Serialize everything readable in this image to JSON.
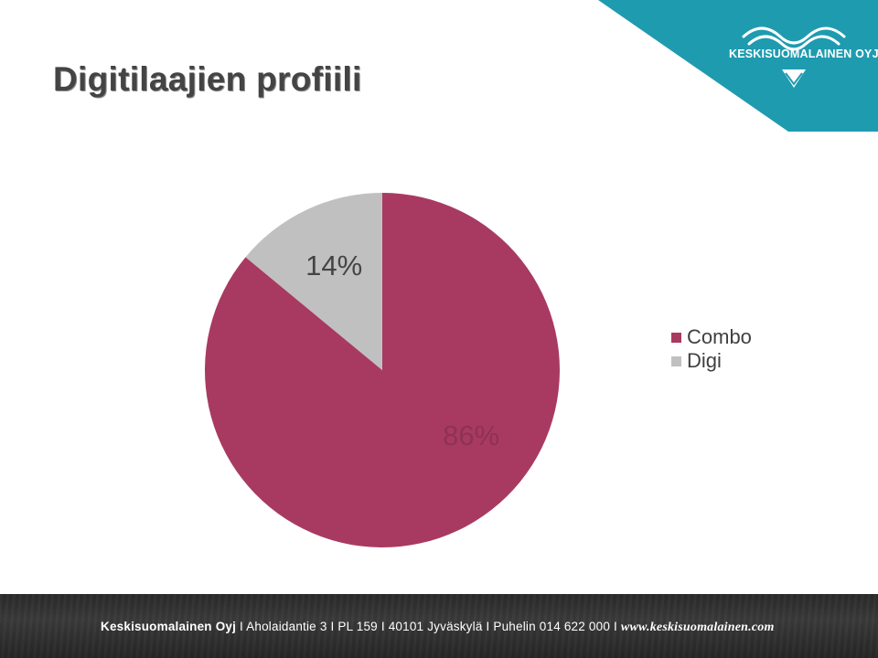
{
  "page": {
    "title": "Digitilaajien profiili"
  },
  "brand": {
    "logo_text": "KESKISUOMALAINEN OYJ",
    "corner_color": "#1f9bb0",
    "logo_icon": "wave-crest-logo-icon"
  },
  "chart_data": {
    "type": "pie",
    "title": "",
    "categories": [
      "Combo",
      "Digi"
    ],
    "values": [
      86,
      14
    ],
    "data_labels": [
      "86%",
      "14%"
    ],
    "colors": [
      "#a83a62",
      "#c0c0c0"
    ],
    "start_angle": "top (12 o'clock), clockwise",
    "legend_position": "right"
  },
  "legend": {
    "items": [
      {
        "label": "Combo",
        "color": "#a83a62"
      },
      {
        "label": "Digi",
        "color": "#c0c0c0"
      }
    ]
  },
  "footer": {
    "company": "Keskisuomalainen Oyj",
    "address": " I Aholaidantie 3 I PL 159 I 40101 Jyväskylä I Puhelin 014 622 000 I ",
    "website": "www.keskisuomalainen.com"
  }
}
